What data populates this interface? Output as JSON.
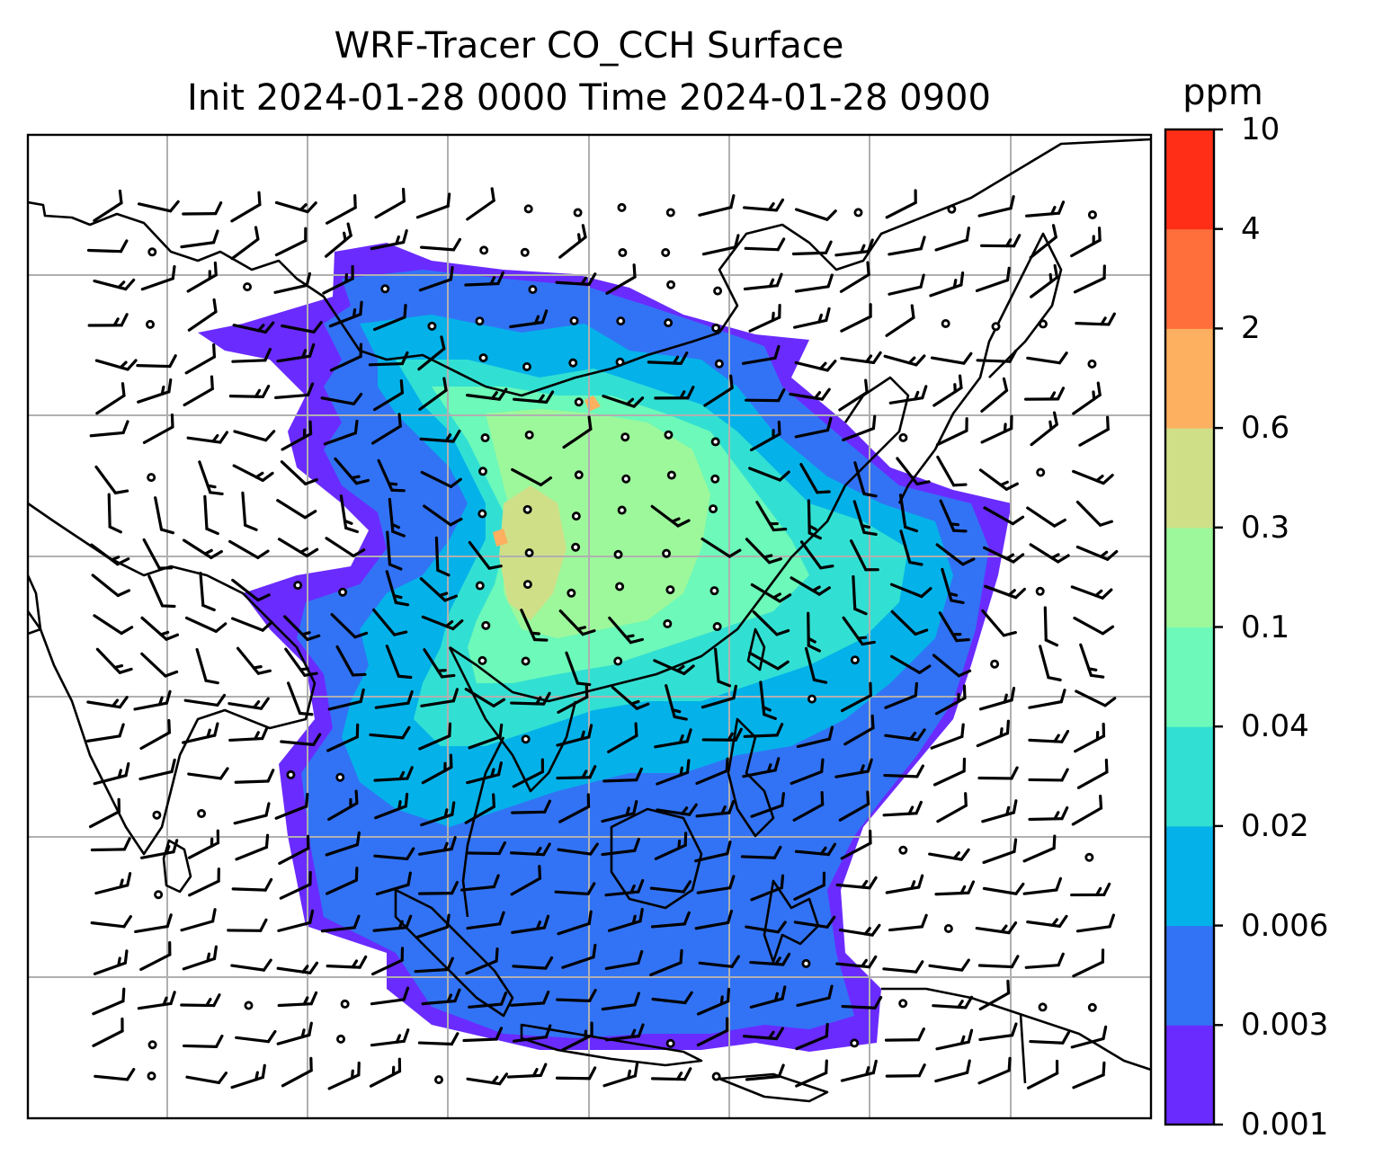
{
  "title": {
    "line1": "WRF-Tracer CO_CCH Surface",
    "line2": "Init 2024-01-28 0000 Time 2024-01-28 0900"
  },
  "colorbar": {
    "unit": "ppm",
    "levels": [
      "0.001",
      "0.003",
      "0.006",
      "0.02",
      "0.04",
      "0.1",
      "0.3",
      "0.6",
      "2",
      "4",
      "10"
    ],
    "colors": [
      "#6a2bff",
      "#3273f5",
      "#04b2e9",
      "#32e0d3",
      "#6cf9b9",
      "#9df89b",
      "#cfdf88",
      "#fdb05f",
      "#fe6f3c",
      "#ff2f17"
    ]
  },
  "map": {
    "background": "#ffffff",
    "coastline_color": "#000000",
    "gridline_color": "#b0b0b0"
  }
}
